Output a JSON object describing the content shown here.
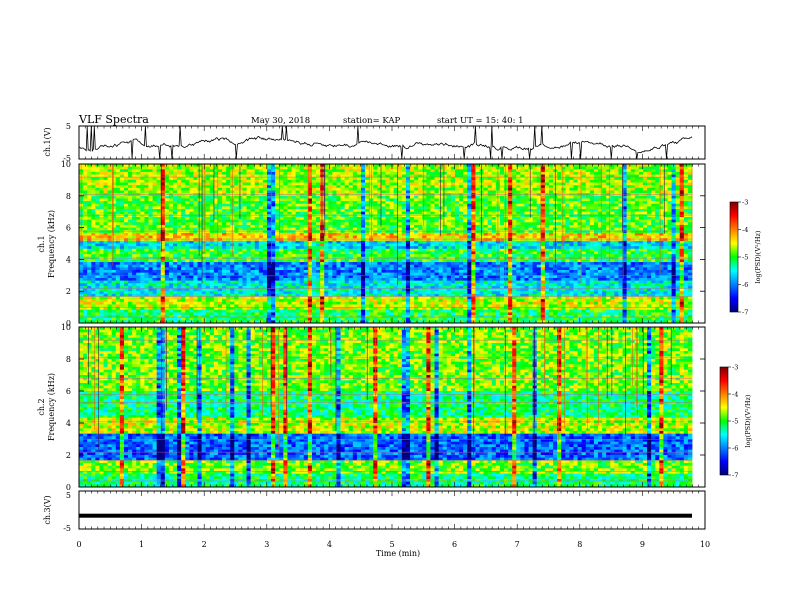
{
  "header": {
    "title": "VLF Spectra",
    "date": "May 30, 2018",
    "station": "station= KAP",
    "start": "start  UT  =   15: 40: 1"
  },
  "axes": {
    "xlabel": "Time  (min)",
    "ylabel_ch1_voltage": "ch.1(V)",
    "ylabel_ch3_voltage": "ch.3(V)",
    "ylabel_spec1_a": "ch.1",
    "ylabel_spec1_b": "Frequency  (kHz)",
    "ylabel_spec2_a": "ch.2",
    "ylabel_spec2_b": "Frequency  (kHz)",
    "colorbar1_label": "log(PSD)(V²/Hz)",
    "colorbar2_label": "log(PSD)(V²/Hz)"
  },
  "chart_data": [
    {
      "type": "line",
      "panel": "ch1-voltage",
      "ylabel": "ch.1(V)",
      "ylim": [
        -5,
        5
      ],
      "yticks": [
        "5",
        "-5"
      ],
      "xlim": [
        0,
        10
      ],
      "description_values": "noisy waveform fluctuating roughly between -4 and +2 V with spikes"
    },
    {
      "type": "heatmap",
      "panel": "ch1-spectrogram",
      "ylabel": "Frequency  (kHz)",
      "xlim": [
        0,
        10
      ],
      "ylim": [
        0,
        10
      ],
      "yticks": [
        "0",
        "2",
        "4",
        "6",
        "8",
        "10"
      ],
      "colorbar": {
        "range": [
          -7,
          -3
        ],
        "ticks": [
          "-3",
          "-4",
          "-5",
          "-6",
          "-7"
        ],
        "colors": [
          "#00007f",
          "#0000ff",
          "#00ffff",
          "#00ff00",
          "#ffff00",
          "#ff0000",
          "#7f0000"
        ]
      },
      "bands": [
        {
          "f": [
            0.0,
            0.8
          ],
          "level": -5.1
        },
        {
          "f": [
            0.8,
            1.6
          ],
          "level": -4.6
        },
        {
          "f": [
            1.6,
            2.6
          ],
          "level": -5.5
        },
        {
          "f": [
            2.6,
            3.8
          ],
          "level": -6.0
        },
        {
          "f": [
            3.8,
            4.6
          ],
          "level": -5.0
        },
        {
          "f": [
            4.6,
            5.2
          ],
          "level": -5.6
        },
        {
          "f": [
            5.2,
            5.6
          ],
          "level": -4.3
        },
        {
          "f": [
            5.6,
            8.0
          ],
          "level": -4.9
        },
        {
          "f": [
            8.0,
            10.0
          ],
          "level": -4.7
        }
      ]
    },
    {
      "type": "heatmap",
      "panel": "ch2-spectrogram",
      "ylabel": "Frequency  (kHz)",
      "xlim": [
        0,
        10
      ],
      "ylim": [
        0,
        10
      ],
      "yticks": [
        "0",
        "2",
        "4",
        "6",
        "8",
        "10"
      ],
      "colorbar": {
        "range": [
          -7,
          -3
        ],
        "ticks": [
          "-3",
          "-4",
          "-5",
          "-6",
          "-7"
        ],
        "colors": [
          "#00007f",
          "#0000ff",
          "#00ffff",
          "#00ff00",
          "#ffff00",
          "#ff0000",
          "#7f0000"
        ]
      },
      "bands": [
        {
          "f": [
            0.0,
            0.8
          ],
          "level": -5.2
        },
        {
          "f": [
            0.8,
            1.6
          ],
          "level": -4.8
        },
        {
          "f": [
            1.6,
            3.4
          ],
          "level": -6.1
        },
        {
          "f": [
            3.4,
            4.4
          ],
          "level": -4.6
        },
        {
          "f": [
            4.4,
            6.0
          ],
          "level": -5.2
        },
        {
          "f": [
            6.0,
            10.0
          ],
          "level": -4.8
        }
      ]
    },
    {
      "type": "line",
      "panel": "ch3-voltage",
      "ylabel": "ch.3(V)",
      "ylim": [
        -5,
        5
      ],
      "yticks": [
        "5",
        "-5"
      ],
      "xlim": [
        0,
        10
      ],
      "values_constant": -1.5
    }
  ],
  "xticks": [
    "0",
    "1",
    "2",
    "3",
    "4",
    "5",
    "6",
    "7",
    "8",
    "9",
    "10"
  ]
}
